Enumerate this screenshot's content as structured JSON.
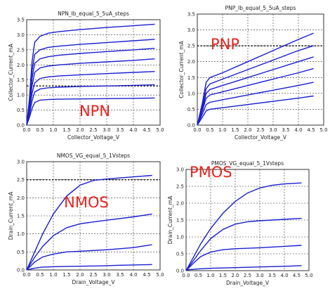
{
  "chart_data": [
    {
      "id": "npn",
      "type": "line",
      "title": "NPN_Ib_equal_5_5uA_steps",
      "xlabel": "Collector_Voltage_V",
      "ylabel": "Collector_Current_mA",
      "big_label": "NPN",
      "xlim": [
        0,
        5
      ],
      "ylim": [
        0,
        3.5
      ],
      "xticks": [
        "0.0",
        "0.5",
        "1.0",
        "1.5",
        "2.0",
        "2.5",
        "3.0",
        "3.5",
        "4.0",
        "4.5",
        "5.0"
      ],
      "yticks": [
        "0.0",
        "0.5",
        "1.0",
        "1.5",
        "2.0",
        "2.5",
        "3.0",
        "3.5"
      ],
      "ref_line_y": 1.3,
      "series": [
        {
          "x": [
            0,
            0.1,
            0.2,
            0.3,
            0.5,
            0.8,
            1.2,
            2,
            3,
            4,
            4.8
          ],
          "y": [
            0,
            0.25,
            0.55,
            0.75,
            0.83,
            0.85,
            0.86,
            0.87,
            0.88,
            0.89,
            0.9
          ]
        },
        {
          "x": [
            0,
            0.1,
            0.2,
            0.3,
            0.5,
            0.8,
            1.2,
            2,
            3,
            4,
            4.8
          ],
          "y": [
            0,
            0.35,
            0.8,
            1.1,
            1.2,
            1.24,
            1.26,
            1.28,
            1.3,
            1.32,
            1.34
          ]
        },
        {
          "x": [
            0,
            0.1,
            0.2,
            0.3,
            0.5,
            0.8,
            1.2,
            2,
            3,
            4,
            4.8
          ],
          "y": [
            0,
            0.45,
            1.05,
            1.4,
            1.55,
            1.6,
            1.63,
            1.67,
            1.71,
            1.75,
            1.78
          ]
        },
        {
          "x": [
            0,
            0.1,
            0.2,
            0.3,
            0.5,
            0.8,
            1.2,
            2,
            3,
            4,
            4.8
          ],
          "y": [
            0,
            0.55,
            1.3,
            1.75,
            1.9,
            1.96,
            2,
            2.05,
            2.1,
            2.15,
            2.2
          ]
        },
        {
          "x": [
            0,
            0.1,
            0.2,
            0.3,
            0.5,
            0.8,
            1.2,
            2,
            3,
            4,
            4.8
          ],
          "y": [
            0,
            0.65,
            1.55,
            2.05,
            2.2,
            2.27,
            2.32,
            2.38,
            2.44,
            2.5,
            2.55
          ]
        },
        {
          "x": [
            0,
            0.1,
            0.2,
            0.3,
            0.5,
            0.8,
            1.2,
            2,
            3,
            4,
            4.8
          ],
          "y": [
            0,
            0.75,
            1.8,
            2.35,
            2.5,
            2.58,
            2.62,
            2.68,
            2.74,
            2.8,
            2.85
          ]
        },
        {
          "x": [
            0,
            0.1,
            0.2,
            0.3,
            0.5,
            0.8,
            1.2,
            2,
            3,
            4,
            4.8
          ],
          "y": [
            0,
            0.85,
            2.1,
            2.75,
            2.95,
            3.05,
            3.1,
            3.17,
            3.24,
            3.3,
            3.35
          ]
        }
      ]
    },
    {
      "id": "pnp",
      "type": "line",
      "title": "PNP_Ib_equal_5_5uA_steps",
      "xlabel": "Collector_Voltage_V",
      "ylabel": "Collector_Current_mA",
      "big_label": "PNP",
      "xlim": [
        0,
        5
      ],
      "ylim": [
        0,
        3.5
      ],
      "xticks": [
        "0.0",
        "0.5",
        "1.0",
        "1.5",
        "2.0",
        "2.5",
        "3.0",
        "3.5",
        "4.0",
        "4.5",
        "5.0"
      ],
      "yticks": [
        "0.0",
        "0.5",
        "1.0",
        "1.5",
        "2.0",
        "2.5",
        "3.0",
        "3.5"
      ],
      "ref_line_y": 2.5,
      "series": [
        {
          "x": [
            0,
            0.2,
            0.35,
            0.5,
            1,
            2,
            3,
            4,
            4.6
          ],
          "y": [
            0,
            0.25,
            0.45,
            0.5,
            0.55,
            0.65,
            0.75,
            0.85,
            0.92
          ]
        },
        {
          "x": [
            0,
            0.2,
            0.35,
            0.5,
            1,
            2,
            3,
            4,
            4.6
          ],
          "y": [
            0,
            0.35,
            0.65,
            0.72,
            0.8,
            0.95,
            1.1,
            1.25,
            1.35
          ]
        },
        {
          "x": [
            0,
            0.2,
            0.35,
            0.5,
            1,
            2,
            3,
            4,
            4.6
          ],
          "y": [
            0,
            0.45,
            0.85,
            0.95,
            1.05,
            1.25,
            1.45,
            1.65,
            1.78
          ]
        },
        {
          "x": [
            0,
            0.2,
            0.35,
            0.5,
            1,
            2,
            3,
            4,
            4.6
          ],
          "y": [
            0,
            0.5,
            1.0,
            1.12,
            1.25,
            1.5,
            1.75,
            2.0,
            2.15
          ]
        },
        {
          "x": [
            0,
            0.2,
            0.35,
            0.5,
            1,
            2,
            3,
            4,
            4.6
          ],
          "y": [
            0,
            0.6,
            1.15,
            1.3,
            1.45,
            1.75,
            2.05,
            2.35,
            2.5
          ]
        },
        {
          "x": [
            0,
            0.2,
            0.35,
            0.5,
            1,
            2,
            3,
            4,
            4.6
          ],
          "y": [
            0,
            0.7,
            1.35,
            1.5,
            1.65,
            2.0,
            2.35,
            2.7,
            2.9
          ]
        }
      ]
    },
    {
      "id": "nmos",
      "type": "line",
      "title": "NMOS_VG_equal_5_1Vsteps",
      "xlabel": "Drain_Voltage_V",
      "ylabel": "Drain_Current_mA",
      "big_label": "NMOS",
      "xlim": [
        0,
        5
      ],
      "ylim": [
        0,
        3
      ],
      "xticks": [
        "0.0",
        "0.5",
        "1.0",
        "1.5",
        "2.0",
        "2.5",
        "3.0",
        "3.5",
        "4.0",
        "4.5",
        "5.0"
      ],
      "yticks": [
        "0.0",
        "0.5",
        "1.0",
        "1.5",
        "2.0",
        "2.5",
        "3.0"
      ],
      "ref_line_y": 2.5,
      "series": [
        {
          "x": [
            0,
            0.3,
            0.6,
            1,
            1.5,
            2.5,
            3.5,
            4.7
          ],
          "y": [
            0,
            0.05,
            0.08,
            0.09,
            0.1,
            0.11,
            0.13,
            0.15
          ]
        },
        {
          "x": [
            0,
            0.3,
            0.6,
            1,
            1.5,
            2,
            3,
            4,
            4.7
          ],
          "y": [
            0,
            0.22,
            0.36,
            0.44,
            0.5,
            0.52,
            0.56,
            0.62,
            0.7
          ]
        },
        {
          "x": [
            0,
            0.3,
            0.6,
            1,
            1.5,
            2,
            2.5,
            3,
            4,
            4.7
          ],
          "y": [
            0,
            0.35,
            0.65,
            0.95,
            1.17,
            1.28,
            1.33,
            1.38,
            1.47,
            1.55
          ]
        },
        {
          "x": [
            0,
            0.3,
            0.6,
            1,
            1.5,
            2,
            2.5,
            3,
            4,
            4.7
          ],
          "y": [
            0,
            0.5,
            1.0,
            1.55,
            2.05,
            2.35,
            2.48,
            2.52,
            2.58,
            2.62
          ]
        }
      ]
    },
    {
      "id": "pmos",
      "type": "line",
      "title": "PMOS_VG_equal_5_1Vsteps",
      "xlabel": "Drain_Voltage_V",
      "ylabel": "Drain_Current_mA",
      "big_label": "PMOS",
      "xlim": [
        0,
        5
      ],
      "ylim": [
        0,
        3
      ],
      "xticks": [
        "0.0",
        "0.5",
        "1.0",
        "1.5",
        "2.0",
        "2.5",
        "3.0",
        "3.5",
        "4.0",
        "4.5",
        "5.0"
      ],
      "yticks": [
        "0.0",
        "0.5",
        "1.0",
        "1.5",
        "2.0",
        "2.5",
        "3.0"
      ],
      "ref_line_y": null,
      "series": [
        {
          "x": [
            0,
            0.5,
            1,
            2,
            3,
            4,
            4.7
          ],
          "y": [
            0.02,
            0.05,
            0.07,
            0.09,
            0.11,
            0.13,
            0.15
          ]
        },
        {
          "x": [
            0,
            0.3,
            0.6,
            1,
            1.5,
            2,
            3,
            4,
            4.7
          ],
          "y": [
            0,
            0.22,
            0.42,
            0.55,
            0.62,
            0.65,
            0.68,
            0.72,
            0.75
          ]
        },
        {
          "x": [
            0,
            0.3,
            0.6,
            1,
            1.5,
            2,
            2.5,
            3,
            4,
            4.7
          ],
          "y": [
            0,
            0.3,
            0.6,
            0.95,
            1.22,
            1.38,
            1.45,
            1.48,
            1.52,
            1.55
          ]
        },
        {
          "x": [
            0,
            0.3,
            0.6,
            1,
            1.5,
            2,
            2.5,
            3,
            3.5,
            4,
            4.7
          ],
          "y": [
            0,
            0.4,
            0.8,
            1.25,
            1.7,
            2.05,
            2.3,
            2.45,
            2.53,
            2.57,
            2.6
          ]
        }
      ]
    }
  ]
}
